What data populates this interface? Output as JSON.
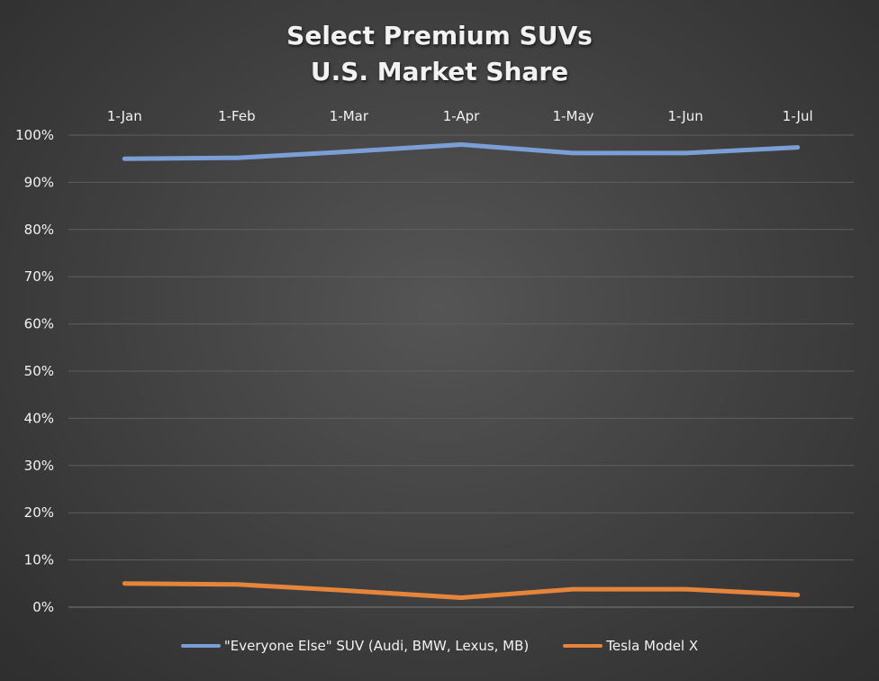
{
  "chart_data": {
    "type": "line",
    "title_lines": [
      "Select Premium SUVs",
      "U.S. Market Share"
    ],
    "categories": [
      "1-Jan",
      "1-Feb",
      "1-Mar",
      "1-Apr",
      "1-May",
      "1-Jun",
      "1-Jul"
    ],
    "series": [
      {
        "name": "\"Everyone Else\" SUV (Audi, BMW, Lexus, MB)",
        "color": "#7b9fd4",
        "values": [
          95.0,
          95.2,
          96.5,
          98.0,
          96.2,
          96.2,
          97.4
        ]
      },
      {
        "name": "Tesla Model X",
        "color": "#e5853c",
        "values": [
          5.0,
          4.8,
          3.5,
          2.0,
          3.8,
          3.8,
          2.6
        ]
      }
    ],
    "y_ticks": [
      "0%",
      "10%",
      "20%",
      "30%",
      "40%",
      "50%",
      "60%",
      "70%",
      "80%",
      "90%",
      "100%"
    ],
    "ylim": [
      0,
      100
    ],
    "x_axis_position": "top",
    "grid": true,
    "legend_position": "bottom"
  }
}
